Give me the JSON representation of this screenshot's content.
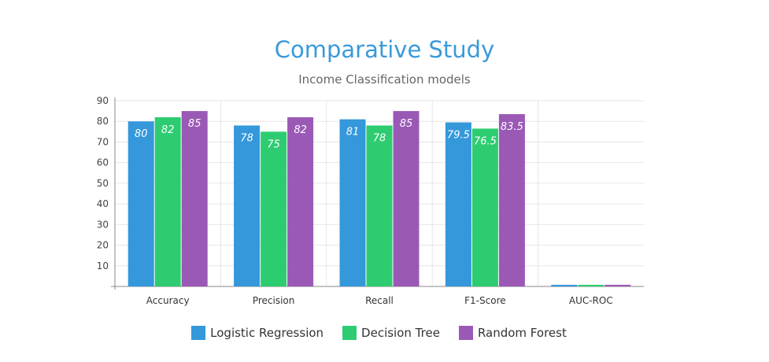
{
  "chart_data": {
    "type": "bar",
    "title": "Comparative Study",
    "subtitle": "Income Classification models",
    "categories": [
      "Accuracy",
      "Precision",
      "Recall",
      "F1-Score",
      "AUC-ROC"
    ],
    "series": [
      {
        "name": "Logistic Regression",
        "color": "#3498db",
        "values": [
          80,
          78,
          81,
          79.5,
          0.8
        ],
        "labels": [
          "80",
          "78",
          "81",
          "79.5",
          ""
        ]
      },
      {
        "name": "Decision Tree",
        "color": "#2ecc71",
        "values": [
          82,
          75,
          78,
          76.5,
          0.8
        ],
        "labels": [
          "82",
          "75",
          "78",
          "76.5",
          ""
        ]
      },
      {
        "name": "Random Forest",
        "color": "#9b59b6",
        "values": [
          85,
          82,
          85,
          83.5,
          0.8
        ],
        "labels": [
          "85",
          "82",
          "85",
          "83.5",
          ""
        ]
      }
    ],
    "yticks": [
      10,
      20,
      30,
      40,
      50,
      60,
      70,
      80,
      90
    ],
    "ylim": [
      0,
      90
    ],
    "grid": true,
    "legend_position": "bottom"
  }
}
